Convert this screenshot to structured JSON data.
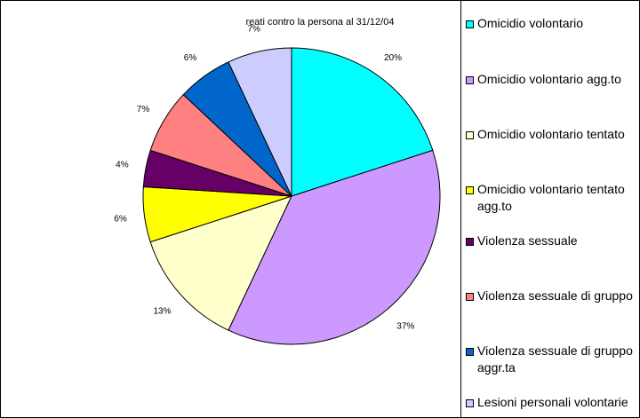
{
  "chart_data": {
    "type": "pie",
    "title": "reati contro la persona al 31/12/04",
    "categories": [
      "Omicidio volontario",
      "Omicidio volontario agg.to",
      "Omicidio volontario tentato",
      "Omicidio volontario  tentato agg.to",
      "Violenza sessuale",
      "Violenza sessuale di gruppo",
      "Violenza sessuale di gruppo aggr.ta",
      "Lesioni personali volontarie"
    ],
    "values": [
      20,
      37,
      13,
      6,
      4,
      7,
      6,
      7
    ],
    "labels": [
      "20%",
      "37%",
      "13%",
      "6%",
      "4%",
      "7%",
      "6%",
      "7%"
    ],
    "colors": [
      "#00ffff",
      "#cc99ff",
      "#ffffcc",
      "#ffff00",
      "#660066",
      "#ff8080",
      "#0066cc",
      "#ccccff"
    ],
    "legend_position": "right",
    "start_angle": "12 o'clock",
    "direction": "clockwise"
  }
}
